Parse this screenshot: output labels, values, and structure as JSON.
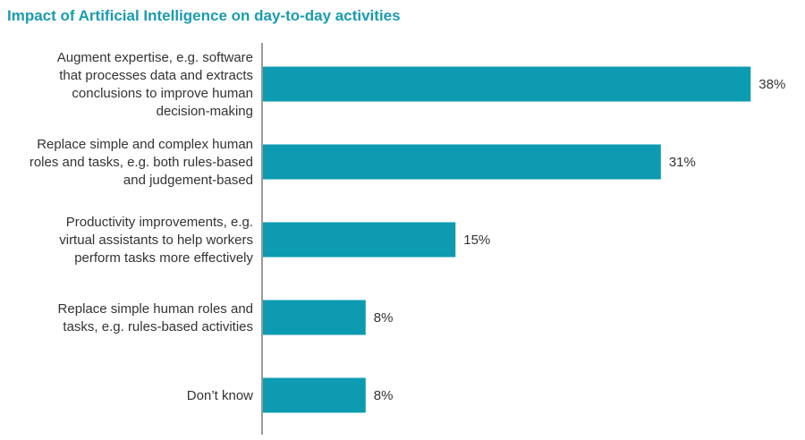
{
  "chart_data": {
    "type": "bar",
    "orientation": "horizontal",
    "title": "Impact of Artificial Intelligence on day-to-day activities",
    "categories": [
      "Augment expertise, e.g. software that processes data and extracts conclusions to improve human decision-making",
      "Replace simple and complex human roles and tasks, e.g. both rules-based and judgement-based",
      "Productivity improvements, e.g. virtual assistants to help workers perform tasks more effectively",
      "Replace simple human roles and tasks, e.g. rules-based activities",
      "Don’t know"
    ],
    "category_lines": [
      [
        "Augment expertise, e.g. software",
        "that processes data and extracts",
        "conclusions to improve human",
        "decision-making"
      ],
      [
        "Replace simple and complex human",
        "roles and tasks, e.g. both rules-based",
        "and judgement-based"
      ],
      [
        "Productivity improvements, e.g.",
        "virtual assistants to help workers",
        "perform tasks more effectively"
      ],
      [
        "Replace simple human roles and",
        "tasks, e.g. rules-based activities"
      ],
      [
        "Don’t know"
      ]
    ],
    "values": [
      38,
      31,
      15,
      8,
      8
    ],
    "value_labels": [
      "38%",
      "31%",
      "15%",
      "8%",
      "8%"
    ],
    "unit": "%",
    "xlim": [
      0,
      40
    ],
    "grid": false,
    "legend": "none",
    "bar_color": "#0d9bb2",
    "title_color": "#1a9bb0"
  }
}
